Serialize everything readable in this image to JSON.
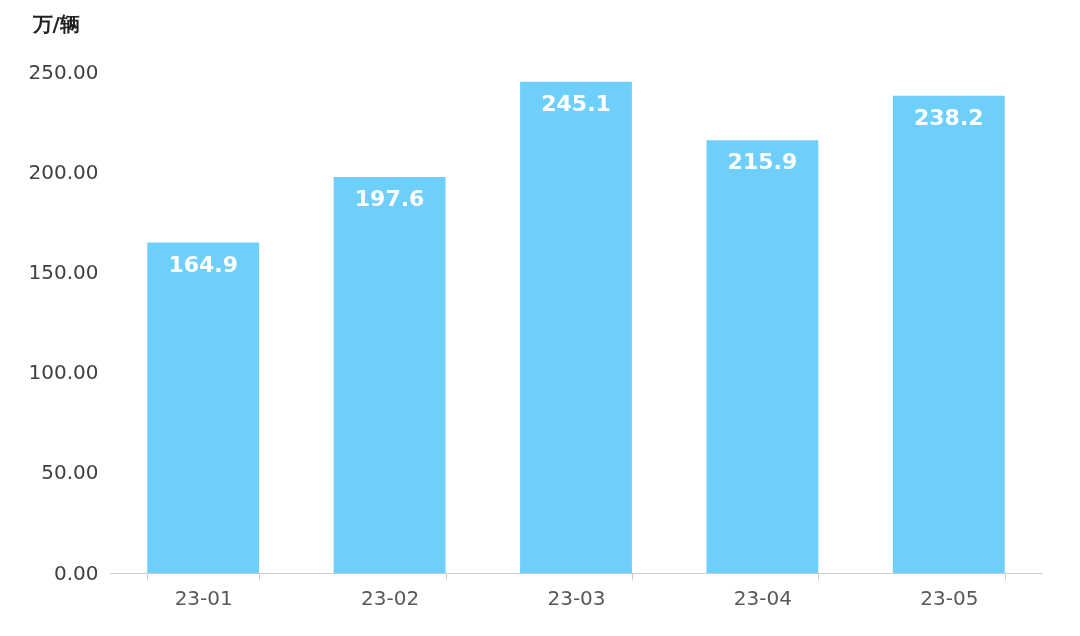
{
  "chart_data": {
    "type": "bar",
    "ylabel": "万/辆",
    "categories": [
      "23-01",
      "23-02",
      "23-03",
      "23-04",
      "23-05"
    ],
    "values": [
      164.9,
      197.6,
      245.1,
      215.9,
      238.2
    ],
    "color": "#6ecffb",
    "ylim": [
      0,
      250
    ],
    "yticks": [
      {
        "value": 0,
        "label": "0.00"
      },
      {
        "value": 50,
        "label": "50.00"
      },
      {
        "value": 100,
        "label": "100.00"
      },
      {
        "value": 150,
        "label": "150.00"
      },
      {
        "value": 200,
        "label": "200.00"
      },
      {
        "value": 250,
        "label": "250.00"
      }
    ],
    "grid": false,
    "data_labels": true
  }
}
